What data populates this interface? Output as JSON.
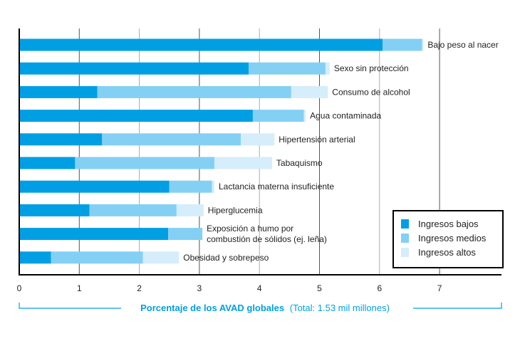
{
  "chart_data": {
    "type": "bar",
    "orientation": "horizontal",
    "stacked": true,
    "categories": [
      "Bajo peso al nacer",
      "Sexo sin protección",
      "Consumo de alcohol",
      "Agua contaminada",
      "Hipertensión arterial",
      "Tabaquismo",
      "Lactancia materna insuficiente",
      "Hiperglucemia",
      "Exposición a humo por combustión de sólidos (ej. leña)",
      "Obesidad y sobrepeso"
    ],
    "category_lines": [
      [
        "Bajo peso al nacer"
      ],
      [
        "Sexo sin protección"
      ],
      [
        "Consumo de alcohol"
      ],
      [
        "Agua contaminada"
      ],
      [
        "Hipertensión arterial"
      ],
      [
        "Tabaquismo"
      ],
      [
        "Lactancia materna insuficiente"
      ],
      [
        "Hiperglucemia"
      ],
      [
        "Exposición a humo por",
        "combustión de sólidos (ej. leña)"
      ],
      [
        "Obesidad y sobrepeso"
      ]
    ],
    "series": [
      {
        "name": "Ingresos bajos",
        "color": "#009fe3",
        "values": [
          6.05,
          3.82,
          1.3,
          3.89,
          1.38,
          0.93,
          2.5,
          1.17,
          2.48,
          0.53
        ]
      },
      {
        "name": "Ingresos medios",
        "color": "#84d0f5",
        "values": [
          0.66,
          1.28,
          3.23,
          0.85,
          2.31,
          2.32,
          0.71,
          1.45,
          0.57,
          1.53
        ]
      },
      {
        "name": "Ingresos altos",
        "color": "#d6edfb",
        "values": [
          0.02,
          0.07,
          0.61,
          0.03,
          0.56,
          0.96,
          0.04,
          0.45,
          0.0,
          0.6
        ]
      }
    ],
    "xlim": [
      0,
      8
    ],
    "xticks": [
      "0",
      "1",
      "2",
      "3",
      "4",
      "5",
      "6",
      "7"
    ],
    "xlabel_bold": "Porcentaje de los AVAD globales",
    "xlabel_rest": "(Total: 1.53 mil millones)",
    "grid": true,
    "legend_position": "bottom-right"
  }
}
